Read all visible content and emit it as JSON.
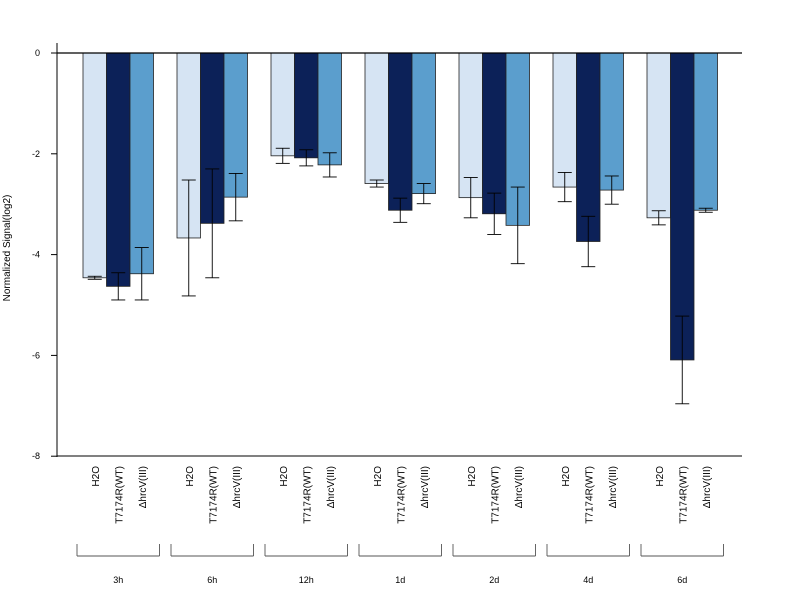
{
  "chart_data": {
    "type": "bar",
    "ylabel": "Normalized Signal(log2)",
    "ylim": [
      -8,
      0
    ],
    "yticks": [
      "0",
      "-2",
      "-4",
      "-6",
      "-8"
    ],
    "ytick_values": [
      0,
      -2,
      -4,
      -6,
      -8
    ],
    "categories": [
      "3h",
      "6h",
      "12h",
      "1d",
      "2d",
      "4d",
      "6d"
    ],
    "series": [
      {
        "name": "H2O",
        "color": "#d6e4f3",
        "values": [
          -4.46,
          -3.67,
          -2.04,
          -2.59,
          -2.87,
          -2.66,
          -3.27
        ],
        "error": [
          0.03,
          1.15,
          0.15,
          0.07,
          0.4,
          0.29,
          0.14
        ]
      },
      {
        "name": "T7174R(WT)",
        "color": "#0c2158",
        "values": [
          -4.63,
          -3.38,
          -2.08,
          -3.12,
          -3.19,
          -3.74,
          -6.09
        ],
        "error": [
          0.27,
          1.08,
          0.16,
          0.24,
          0.41,
          0.5,
          0.87
        ]
      },
      {
        "name": "ΔhrcV(III)",
        "color": "#5b9ecd",
        "values": [
          -4.38,
          -2.86,
          -2.22,
          -2.79,
          -3.42,
          -2.72,
          -3.12
        ],
        "error": [
          0.52,
          0.47,
          0.24,
          0.2,
          0.76,
          0.28,
          0.04
        ]
      }
    ],
    "grid": false,
    "legend": "none",
    "baseline": 0
  }
}
